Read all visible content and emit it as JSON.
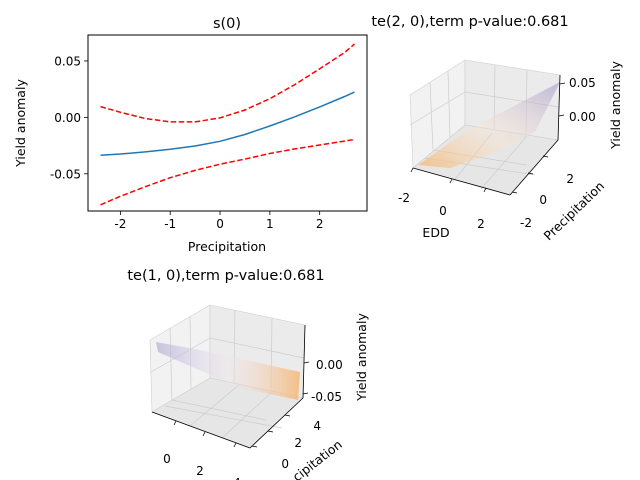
{
  "chart_data": [
    {
      "type": "line",
      "title": "s(0)",
      "xlabel": "Precipitation",
      "ylabel": "Yield anomaly",
      "xlim": [
        -2.65,
        2.95
      ],
      "ylim": [
        -0.083,
        0.073
      ],
      "xticks": [
        "-2",
        "-1",
        "0",
        "1",
        "2"
      ],
      "yticks": [
        "-0.05",
        "0.00",
        "0.05"
      ],
      "grid": false,
      "series": [
        {
          "color": "#1f77b4",
          "style": "solid",
          "x": [
            -2.4,
            -2.0,
            -1.5,
            -1.0,
            -0.5,
            0.0,
            0.5,
            1.0,
            1.5,
            2.0,
            2.5,
            2.7
          ],
          "y": [
            -0.0335,
            -0.0325,
            -0.0306,
            -0.0283,
            -0.0254,
            -0.0212,
            -0.0152,
            -0.0077,
            0.0005,
            0.0093,
            0.0185,
            0.0224
          ]
        },
        {
          "color": "#ff0000",
          "style": "dashed",
          "x": [
            -2.4,
            -2.0,
            -1.5,
            -1.0,
            -0.5,
            0.0,
            0.5,
            1.0,
            1.5,
            2.0,
            2.5,
            2.7
          ],
          "y": [
            0.0095,
            0.0045,
            -0.001,
            -0.004,
            -0.004,
            -0.0005,
            0.0065,
            0.0165,
            0.029,
            0.043,
            0.0575,
            0.065
          ]
        },
        {
          "color": "#ff0000",
          "style": "dashed",
          "x": [
            -2.4,
            -2.0,
            -1.5,
            -1.0,
            -0.5,
            0.0,
            0.5,
            1.0,
            1.5,
            2.0,
            2.5,
            2.7
          ],
          "y": [
            -0.0775,
            -0.07,
            -0.0615,
            -0.0535,
            -0.047,
            -0.0415,
            -0.037,
            -0.032,
            -0.028,
            -0.0245,
            -0.021,
            -0.0195
          ]
        }
      ]
    },
    {
      "type": "surface3d",
      "title": "te(2, 0),term p-value:0.681",
      "xlabel": "EDD",
      "ylabel": "Precipitation",
      "zlabel": "Yield anomaly",
      "xticks": [
        "-2",
        "0",
        "2"
      ],
      "yticks": [
        "-2",
        "0",
        "2"
      ],
      "zticks": [
        "0.00",
        "0.05"
      ],
      "colormap": "PuOr",
      "colors": {
        "low": "#f5b46b",
        "high": "#a9a3d2"
      }
    },
    {
      "type": "surface3d",
      "title": "te(1, 0),term p-value:0.681",
      "xlabel": "",
      "ylabel": "cipitation",
      "zlabel": "Yield anomaly",
      "xticks": [
        "0",
        "2",
        "4"
      ],
      "yticks": [
        "0",
        "2",
        "4"
      ],
      "zticks": [
        "-0.05",
        "0.00"
      ],
      "colormap": "PuOr",
      "colors": {
        "low": "#f5b46b",
        "high": "#a9a3d2"
      }
    }
  ]
}
